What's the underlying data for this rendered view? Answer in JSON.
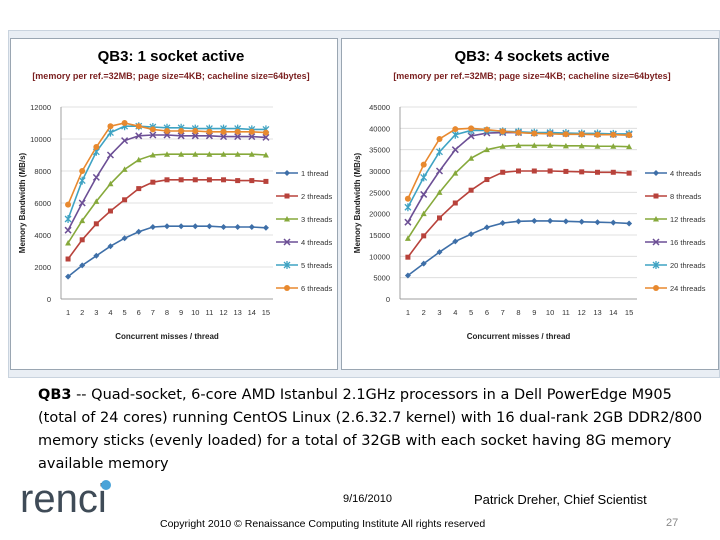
{
  "slide": {
    "caption_bold": "QB3",
    "caption_rest": " -- Quad-socket, 6-core AMD Istanbul 2.1GHz processors in a Dell PowerEdge M905 (total of 24 cores) running CentOS Linux (2.6.32.7 kernel) with 16 dual-rank 2GB DDR2/800 memory sticks (evenly loaded) for a total of 32GB with each socket having 8G memory available memory",
    "logo_text": "renci",
    "date": "9/16/2010",
    "author": "Patrick Dreher, Chief Scientist",
    "copyright": "Copyright 2010 © Renaissance Computing Institute All rights reserved",
    "page_number": "27"
  },
  "chart_data": [
    {
      "type": "line",
      "title": "QB3: 1 socket active",
      "subtitle": "[memory per ref.=32MB; page size=4KB; cacheline size=64bytes]",
      "xlabel": "Concurrent misses / thread",
      "ylabel": "Memory Bandwidth (MB/s)",
      "ylim": [
        0,
        12000
      ],
      "yticks": [
        0,
        2000,
        4000,
        6000,
        8000,
        10000,
        12000
      ],
      "x": [
        1,
        2,
        3,
        4,
        5,
        6,
        7,
        8,
        9,
        10,
        11,
        12,
        13,
        14,
        15
      ],
      "series": [
        {
          "name": "1 thread",
          "color": "#3e6fa8",
          "marker": "diamond",
          "values": [
            1400,
            2100,
            2700,
            3300,
            3800,
            4200,
            4500,
            4550,
            4550,
            4550,
            4550,
            4500,
            4500,
            4500,
            4450
          ]
        },
        {
          "name": "2 threads",
          "color": "#b8423b",
          "marker": "square",
          "values": [
            2500,
            3700,
            4700,
            5500,
            6200,
            6900,
            7300,
            7450,
            7450,
            7450,
            7450,
            7450,
            7400,
            7400,
            7350
          ]
        },
        {
          "name": "3 threads",
          "color": "#86a93b",
          "marker": "triangle",
          "values": [
            3500,
            4900,
            6100,
            7200,
            8100,
            8700,
            9000,
            9050,
            9050,
            9050,
            9050,
            9050,
            9050,
            9050,
            9000
          ]
        },
        {
          "name": "4 threads",
          "color": "#6c4f95",
          "marker": "x",
          "values": [
            4300,
            6000,
            7600,
            9000,
            9900,
            10200,
            10250,
            10250,
            10200,
            10200,
            10200,
            10150,
            10150,
            10150,
            10100
          ]
        },
        {
          "name": "5 threads",
          "color": "#3fa3c3",
          "marker": "star",
          "values": [
            5000,
            7400,
            9200,
            10400,
            10800,
            10800,
            10750,
            10700,
            10700,
            10650,
            10650,
            10650,
            10650,
            10600,
            10600
          ]
        },
        {
          "name": "6 threads",
          "color": "#e8892f",
          "marker": "circle",
          "values": [
            5900,
            8000,
            9500,
            10800,
            11000,
            10800,
            10600,
            10500,
            10500,
            10500,
            10450,
            10450,
            10450,
            10450,
            10400
          ]
        }
      ]
    },
    {
      "type": "line",
      "title": "QB3: 4 sockets active",
      "subtitle": "[memory per ref.=32MB; page size=4KB; cacheline size=64bytes]",
      "xlabel": "Concurrent misses / thread",
      "ylabel": "Memory Bandwidth (MB/s)",
      "ylim": [
        0,
        45000
      ],
      "yticks": [
        0,
        5000,
        10000,
        15000,
        20000,
        25000,
        30000,
        35000,
        40000,
        45000
      ],
      "x": [
        1,
        2,
        3,
        4,
        5,
        6,
        7,
        8,
        9,
        10,
        11,
        12,
        13,
        14,
        15
      ],
      "series": [
        {
          "name": "4 threads",
          "color": "#3e6fa8",
          "marker": "diamond",
          "values": [
            5500,
            8300,
            11000,
            13500,
            15200,
            16800,
            17800,
            18200,
            18300,
            18300,
            18200,
            18100,
            18000,
            17900,
            17700
          ]
        },
        {
          "name": "8 threads",
          "color": "#b8423b",
          "marker": "square",
          "values": [
            9800,
            14800,
            19000,
            22500,
            25500,
            28000,
            29700,
            30000,
            30000,
            30000,
            29900,
            29800,
            29700,
            29700,
            29500
          ]
        },
        {
          "name": "12 threads",
          "color": "#86a93b",
          "marker": "triangle",
          "values": [
            14200,
            20000,
            25000,
            29500,
            33000,
            35000,
            35800,
            36000,
            36000,
            36000,
            35900,
            35900,
            35800,
            35800,
            35700
          ]
        },
        {
          "name": "16 threads",
          "color": "#6c4f95",
          "marker": "x",
          "values": [
            18000,
            24500,
            30000,
            35000,
            38200,
            38900,
            39000,
            39000,
            38900,
            38800,
            38800,
            38700,
            38700,
            38600,
            38600
          ]
        },
        {
          "name": "20 threads",
          "color": "#3fa3c3",
          "marker": "star",
          "values": [
            21500,
            28500,
            34500,
            38500,
            39500,
            39500,
            39300,
            39200,
            39000,
            39000,
            38900,
            38800,
            38800,
            38700,
            38700
          ]
        },
        {
          "name": "24 threads",
          "color": "#e8892f",
          "marker": "circle",
          "values": [
            23500,
            31500,
            37500,
            39800,
            40000,
            39700,
            39300,
            39000,
            38800,
            38700,
            38600,
            38600,
            38500,
            38500,
            38400
          ]
        }
      ]
    }
  ]
}
